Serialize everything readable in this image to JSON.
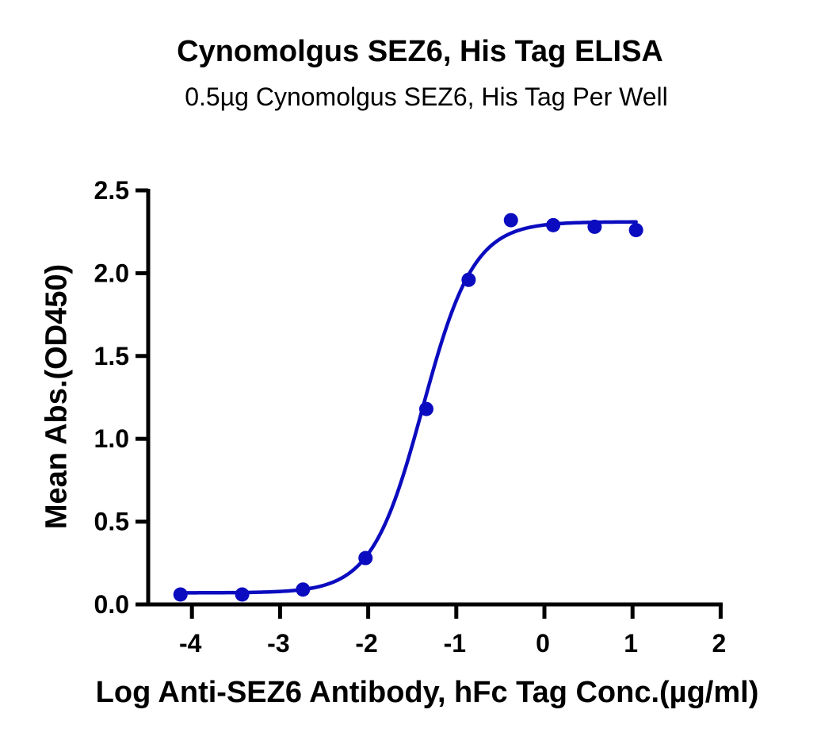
{
  "title": "Cynomolgus SEZ6, His Tag ELISA",
  "subtitle": "0.5µg Cynomolgus SEZ6, His Tag Per Well",
  "chart_data": {
    "type": "scatter",
    "title": "Cynomolgus SEZ6, His Tag ELISA",
    "subtitle": "0.5µg Cynomolgus SEZ6, His Tag Per Well",
    "xlabel": "Log Anti-SEZ6 Antibody, hFc Tag Conc.(µg/ml)",
    "ylabel": "Mean Abs.(OD450)",
    "xlim": [
      -4.5,
      2
    ],
    "ylim": [
      0,
      2.5
    ],
    "xticks": [
      -4,
      -3,
      -2,
      -1,
      0,
      1,
      2
    ],
    "xtick_labels": [
      "-4",
      "-3",
      "-2",
      "-1",
      "0",
      "1",
      "2"
    ],
    "yticks": [
      0,
      0.5,
      1,
      1.5,
      2,
      2.5
    ],
    "ytick_labels": [
      "0.0",
      "0.5",
      "1.0",
      "1.5",
      "2.0",
      "2.5"
    ],
    "grid": false,
    "legend": null,
    "color": "#0b0bbf",
    "series": [
      {
        "name": "Mean Abs.(OD450)",
        "x": [
          -4.13,
          -3.43,
          -2.74,
          -2.03,
          -1.34,
          -0.86,
          -0.38,
          0.1,
          0.57,
          1.04
        ],
        "y": [
          0.06,
          0.06,
          0.09,
          0.28,
          1.18,
          1.96,
          2.32,
          2.29,
          2.28,
          2.26
        ]
      }
    ],
    "fit": {
      "model": "4PL sigmoidal",
      "bottom": 0.07,
      "top": 2.31,
      "logEC50": -1.38,
      "hill_slope": 1.5,
      "x_range": [
        -4.13,
        1.04
      ]
    }
  }
}
